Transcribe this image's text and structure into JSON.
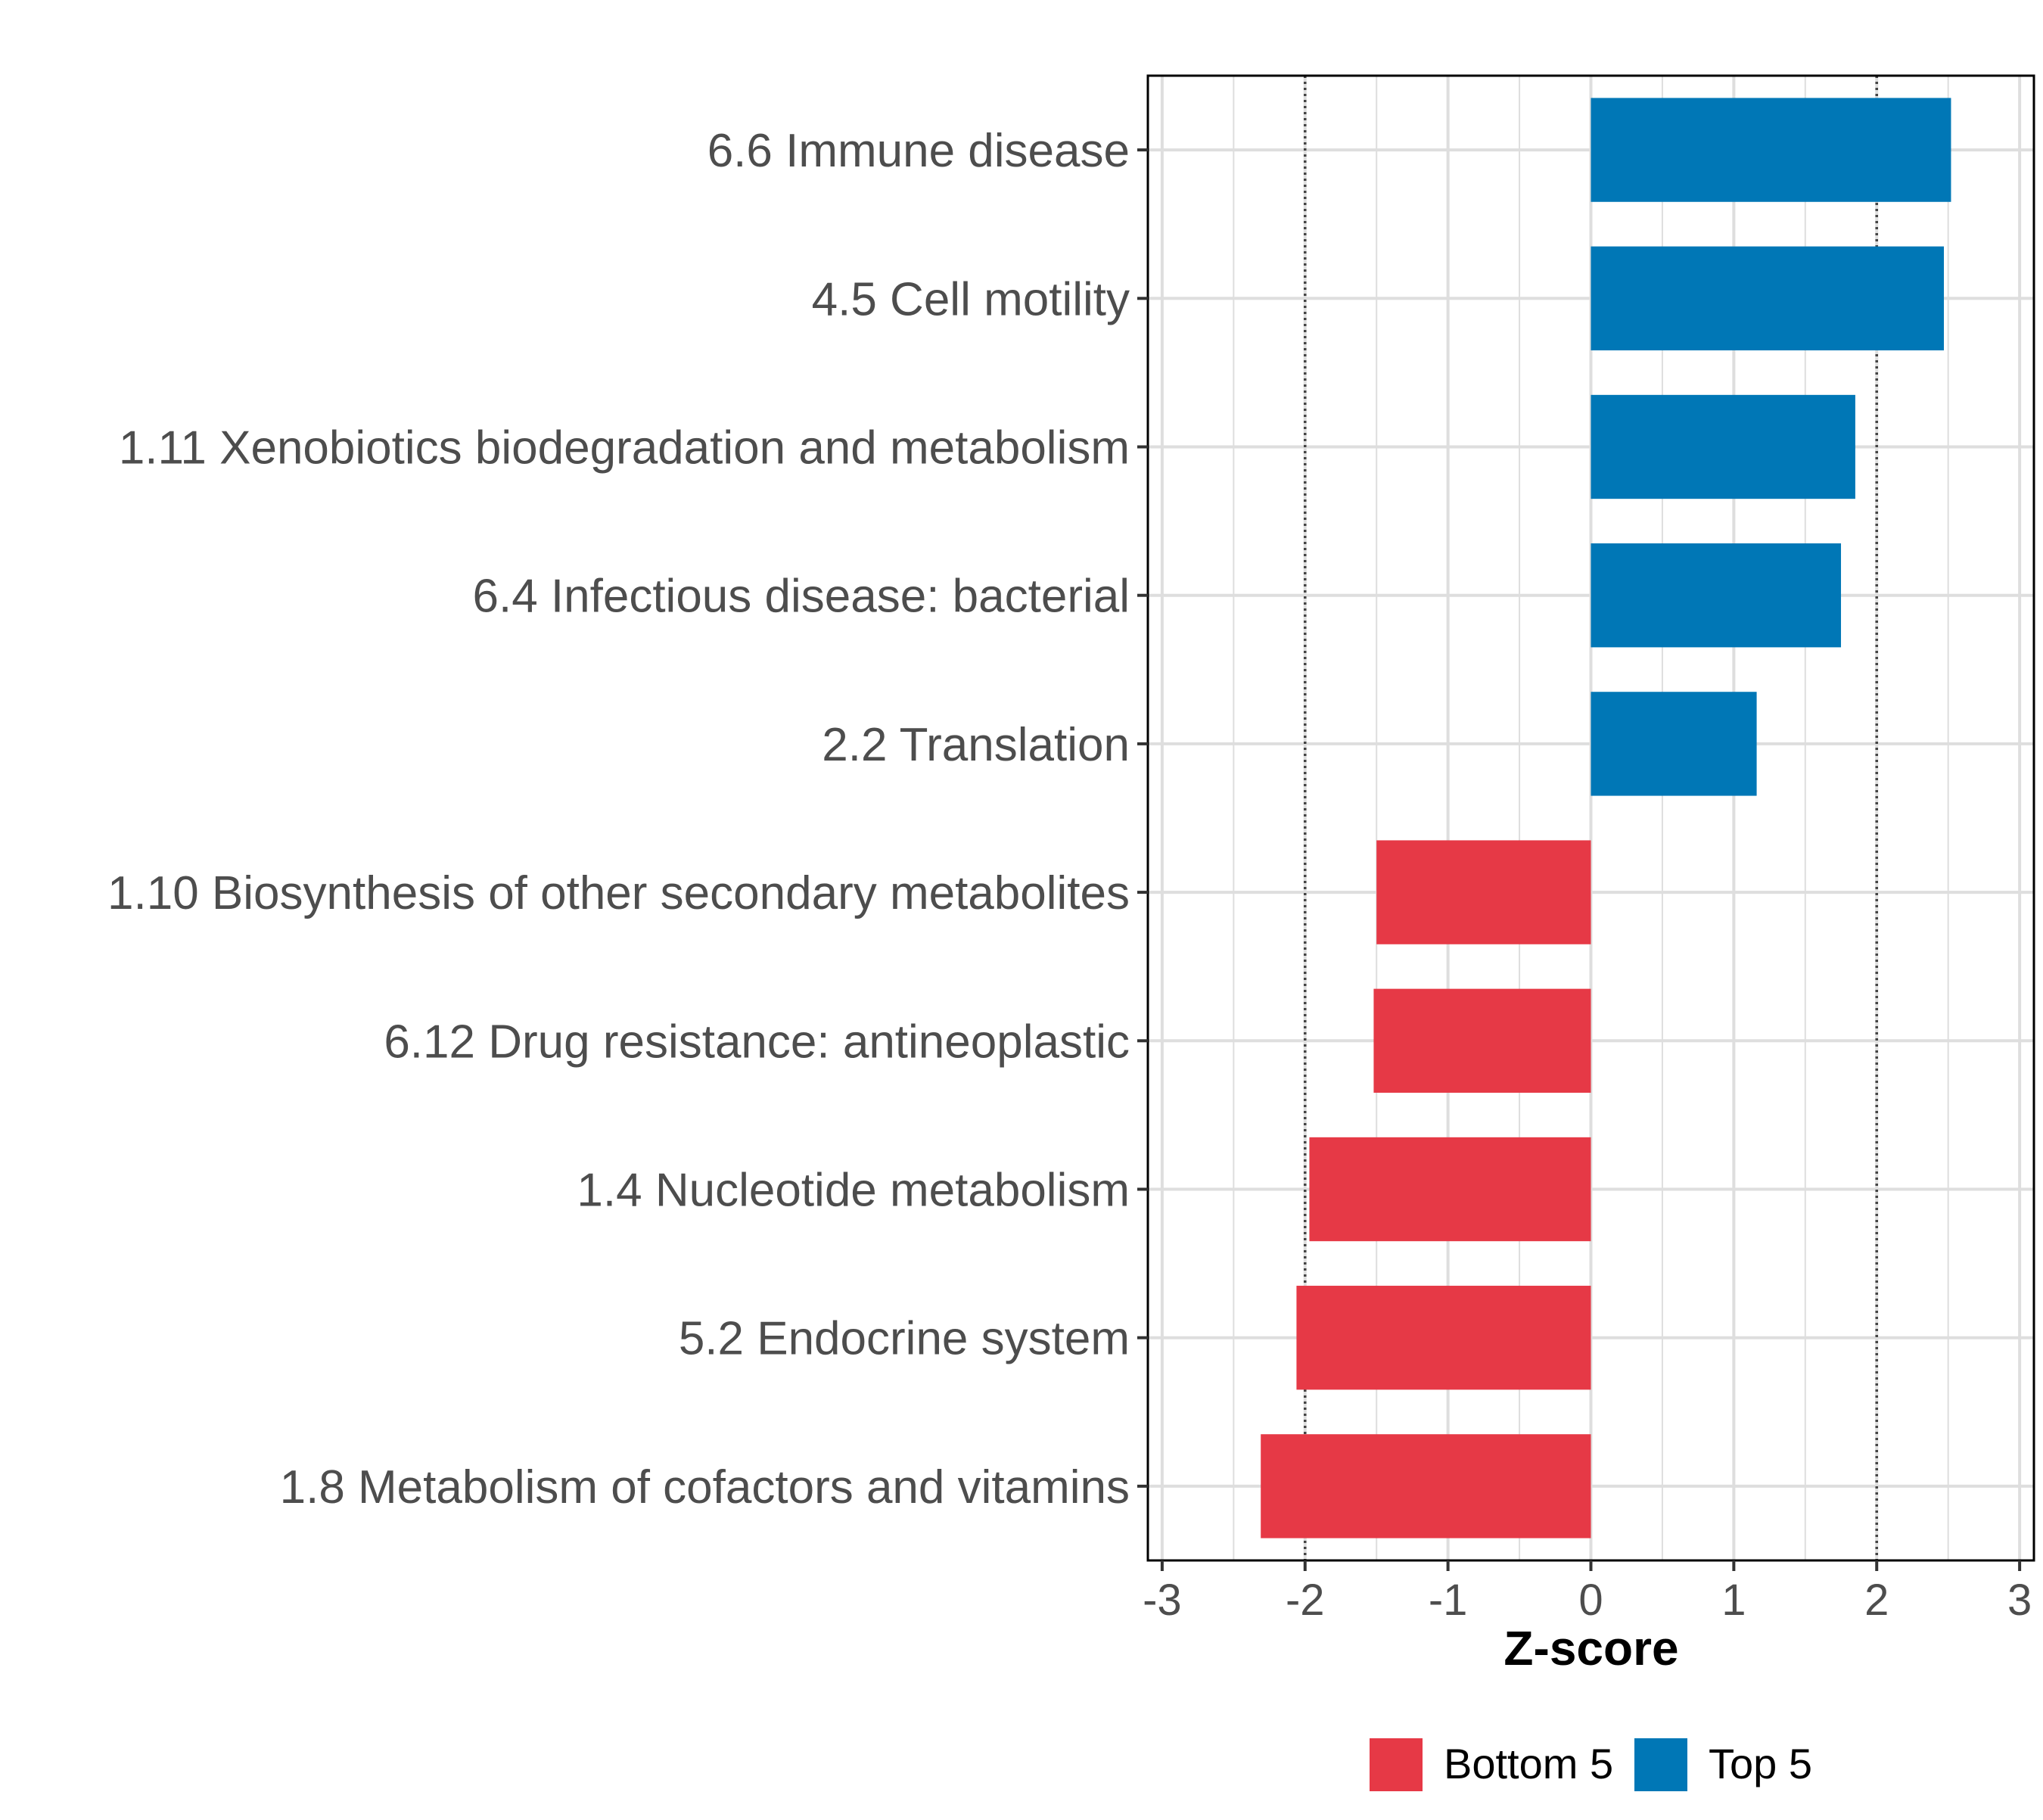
{
  "chart_data": {
    "type": "bar",
    "orientation": "horizontal",
    "title": "",
    "xlabel": "Z-score",
    "ylabel": "",
    "xlim": [
      -3.1,
      3.1
    ],
    "x_ticks": [
      -3,
      -2,
      -1,
      0,
      1,
      2,
      3
    ],
    "x_tick_labels": [
      "-3",
      "-2",
      "-1",
      "0",
      "1",
      "2",
      "3"
    ],
    "reference_lines": [
      -2,
      2
    ],
    "grid": true,
    "legend_position": "bottom",
    "categories": [
      "6.6 Immune disease",
      "4.5 Cell motility",
      "1.11 Xenobiotics biodegradation and metabolism",
      "6.4 Infectious disease: bacterial",
      "2.2 Translation",
      "1.10 Biosynthesis of other secondary metabolites",
      "6.12 Drug resistance: antineoplastic",
      "1.4 Nucleotide metabolism",
      "5.2 Endocrine system",
      "1.8 Metabolism of cofactors and vitamins"
    ],
    "values": [
      2.52,
      2.47,
      1.85,
      1.75,
      1.16,
      -1.5,
      -1.52,
      -1.97,
      -2.06,
      -2.31
    ],
    "groups": [
      "Top 5",
      "Top 5",
      "Top 5",
      "Top 5",
      "Top 5",
      "Bottom 5",
      "Bottom 5",
      "Bottom 5",
      "Bottom 5",
      "Bottom 5"
    ],
    "legend": [
      {
        "name": "Bottom 5",
        "color": "#e63946"
      },
      {
        "name": "Top 5",
        "color": "#0077b6"
      }
    ]
  }
}
